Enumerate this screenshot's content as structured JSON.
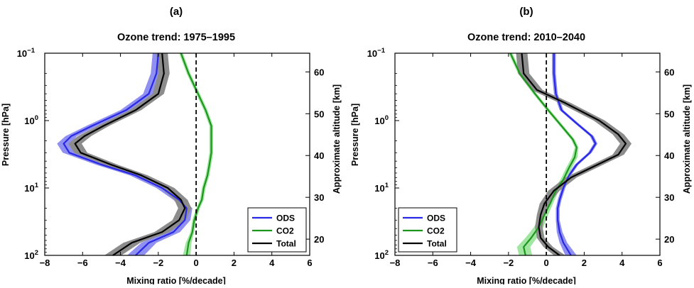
{
  "figure": {
    "panels": [
      {
        "label": "(a)",
        "title": "Ozone trend: 1975–1995"
      },
      {
        "label": "(b)",
        "title": "Ozone trend: 2010–2040"
      }
    ],
    "xlabel": "Mixing ratio [%/decade]",
    "ylabel": "Pressure [hPa]",
    "y2label": "Approximate altitude [km]",
    "xticks": [
      "−8",
      "−6",
      "−4",
      "−2",
      "0",
      "2",
      "4",
      "6"
    ],
    "yticks": [
      {
        "base": "10",
        "exp": "−1"
      },
      {
        "base": "10",
        "exp": "0"
      },
      {
        "base": "10",
        "exp": "1"
      },
      {
        "base": "10",
        "exp": "2"
      }
    ],
    "y2ticks": [
      "20",
      "30",
      "40",
      "50",
      "60"
    ],
    "legend": [
      "ODS",
      "CO2",
      "Total"
    ]
  },
  "chart_data": [
    {
      "type": "line",
      "title": "Ozone trend: 1975–1995",
      "xlabel": "Mixing ratio [%/decade]",
      "ylabel": "Pressure [hPa]",
      "y2label": "Approximate altitude [km]",
      "xlim": [
        -8,
        6
      ],
      "ylim_pressure_hpa": [
        100,
        0.1
      ],
      "yscale": "log",
      "reference_line_x": 0,
      "legend_position": "lower-right",
      "series": [
        {
          "name": "ODS",
          "color": "#2828e6",
          "band_color": "#9090f0",
          "points": [
            [
              -2.0,
              0.1
            ],
            [
              -2.1,
              0.2
            ],
            [
              -2.5,
              0.4
            ],
            [
              -3.7,
              0.7
            ],
            [
              -5.5,
              1.2
            ],
            [
              -6.6,
              1.7
            ],
            [
              -7.0,
              2.2
            ],
            [
              -6.7,
              3.0
            ],
            [
              -5.0,
              4.5
            ],
            [
              -3.2,
              6.5
            ],
            [
              -1.8,
              10
            ],
            [
              -0.9,
              15
            ],
            [
              -0.5,
              20
            ],
            [
              -0.6,
              30
            ],
            [
              -1.2,
              45
            ],
            [
              -2.5,
              65
            ],
            [
              -3.2,
              100
            ]
          ],
          "band": [
            0.3,
            0.3,
            0.3,
            0.3,
            0.3,
            0.3,
            0.35,
            0.35,
            0.3,
            0.3,
            0.3,
            0.3,
            0.3,
            0.3,
            0.35,
            0.4,
            0.45
          ]
        },
        {
          "name": "CO2",
          "color": "#1e961e",
          "band_color": "#a0e6a0",
          "points": [
            [
              -0.8,
              0.1
            ],
            [
              -0.4,
              0.2
            ],
            [
              0.1,
              0.4
            ],
            [
              0.5,
              0.7
            ],
            [
              0.8,
              1.2
            ],
            [
              0.8,
              2.0
            ],
            [
              0.8,
              3.0
            ],
            [
              0.7,
              4.5
            ],
            [
              0.6,
              6.5
            ],
            [
              0.4,
              10
            ],
            [
              0.3,
              15
            ],
            [
              0.1,
              20
            ],
            [
              -0.1,
              30
            ],
            [
              -0.2,
              45
            ],
            [
              -0.4,
              65
            ],
            [
              -0.5,
              100
            ]
          ],
          "band": [
            0.1,
            0.1,
            0.1,
            0.1,
            0.1,
            0.1,
            0.1,
            0.1,
            0.1,
            0.1,
            0.1,
            0.1,
            0.1,
            0.1,
            0.15,
            0.2
          ]
        },
        {
          "name": "Total",
          "color": "#000000",
          "band_color": "#8c8c8c",
          "points": [
            [
              -1.8,
              0.1
            ],
            [
              -1.7,
              0.2
            ],
            [
              -2.0,
              0.4
            ],
            [
              -3.2,
              0.7
            ],
            [
              -4.9,
              1.2
            ],
            [
              -5.9,
              1.7
            ],
            [
              -6.4,
              2.2
            ],
            [
              -6.1,
              3.0
            ],
            [
              -4.5,
              4.5
            ],
            [
              -2.9,
              6.5
            ],
            [
              -1.5,
              10
            ],
            [
              -0.8,
              15
            ],
            [
              -0.6,
              20
            ],
            [
              -0.9,
              30
            ],
            [
              -1.8,
              45
            ],
            [
              -3.4,
              65
            ],
            [
              -4.4,
              100
            ]
          ],
          "band": [
            0.3,
            0.3,
            0.3,
            0.3,
            0.3,
            0.35,
            0.35,
            0.35,
            0.35,
            0.35,
            0.35,
            0.35,
            0.35,
            0.35,
            0.4,
            0.45,
            0.45
          ]
        }
      ]
    },
    {
      "type": "line",
      "title": "Ozone trend: 2010–2040",
      "xlabel": "Mixing ratio [%/decade]",
      "ylabel": "Pressure [hPa]",
      "y2label": "Approximate altitude [km]",
      "xlim": [
        -8,
        6
      ],
      "ylim_pressure_hpa": [
        100,
        0.1
      ],
      "yscale": "log",
      "reference_line_x": 0,
      "legend_position": "lower-left",
      "series": [
        {
          "name": "ODS",
          "color": "#2828e6",
          "band_color": "#9090f0",
          "points": [
            [
              0.4,
              0.1
            ],
            [
              0.4,
              0.2
            ],
            [
              0.5,
              0.4
            ],
            [
              0.8,
              0.7
            ],
            [
              1.6,
              1.1
            ],
            [
              2.4,
              1.7
            ],
            [
              2.6,
              2.2
            ],
            [
              2.3,
              3.0
            ],
            [
              1.6,
              4.5
            ],
            [
              1.2,
              6.5
            ],
            [
              0.9,
              10
            ],
            [
              0.7,
              15
            ],
            [
              0.6,
              20
            ],
            [
              0.6,
              30
            ],
            [
              0.7,
              45
            ],
            [
              0.9,
              65
            ],
            [
              1.3,
              100
            ]
          ],
          "band": [
            0.1,
            0.1,
            0.1,
            0.1,
            0.1,
            0.1,
            0.1,
            0.1,
            0.1,
            0.1,
            0.1,
            0.1,
            0.1,
            0.1,
            0.15,
            0.2,
            0.3
          ]
        },
        {
          "name": "CO2",
          "color": "#1e961e",
          "band_color": "#a0e6a0",
          "points": [
            [
              -1.9,
              0.1
            ],
            [
              -1.4,
              0.2
            ],
            [
              -0.6,
              0.4
            ],
            [
              0.1,
              0.7
            ],
            [
              0.8,
              1.2
            ],
            [
              1.4,
              1.9
            ],
            [
              1.6,
              2.5
            ],
            [
              1.5,
              3.5
            ],
            [
              1.2,
              5.0
            ],
            [
              0.9,
              7.5
            ],
            [
              0.5,
              11
            ],
            [
              0.2,
              17
            ],
            [
              -0.1,
              25
            ],
            [
              -0.4,
              38
            ],
            [
              -0.8,
              55
            ],
            [
              -1.2,
              75
            ],
            [
              -1.1,
              100
            ]
          ],
          "band": [
            0.1,
            0.1,
            0.1,
            0.1,
            0.1,
            0.1,
            0.1,
            0.15,
            0.15,
            0.15,
            0.15,
            0.15,
            0.2,
            0.25,
            0.3,
            0.35,
            0.35
          ]
        },
        {
          "name": "Total",
          "color": "#000000",
          "band_color": "#8c8c8c",
          "points": [
            [
              -1.3,
              0.1
            ],
            [
              -1.2,
              0.2
            ],
            [
              -0.5,
              0.35
            ],
            [
              1.0,
              0.55
            ],
            [
              2.8,
              1.0
            ],
            [
              3.8,
              1.6
            ],
            [
              4.2,
              2.2
            ],
            [
              3.8,
              3.2
            ],
            [
              2.5,
              4.8
            ],
            [
              1.3,
              7.0
            ],
            [
              0.4,
              11
            ],
            [
              -0.1,
              17
            ],
            [
              -0.3,
              25
            ],
            [
              -0.4,
              38
            ],
            [
              -0.3,
              55
            ],
            [
              0.1,
              75
            ],
            [
              0.7,
              100
            ]
          ],
          "band": [
            0.3,
            0.3,
            0.3,
            0.3,
            0.3,
            0.3,
            0.3,
            0.3,
            0.3,
            0.3,
            0.3,
            0.25,
            0.2,
            0.2,
            0.2,
            0.25,
            0.3
          ]
        }
      ]
    }
  ]
}
